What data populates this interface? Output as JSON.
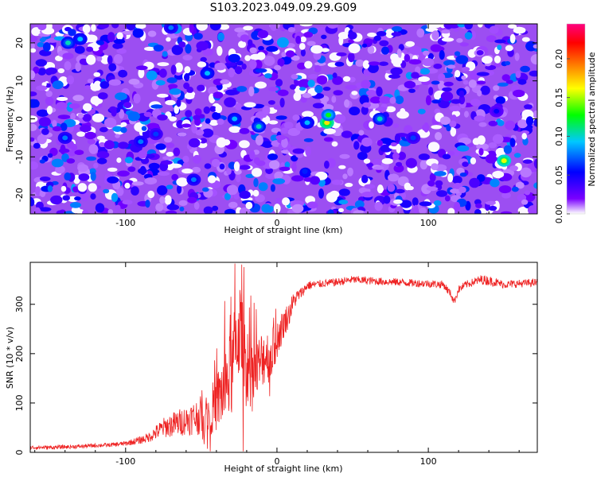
{
  "figure": {
    "title": "S103.2023.049.09.29.G09"
  },
  "chart_data": [
    {
      "type": "heatmap",
      "title": "S103.2023.049.09.29.G09",
      "xlabel": "Height of straight line (km)",
      "ylabel": "Frequency (Hz)",
      "xlim": [
        -163,
        172
      ],
      "ylim": [
        -25,
        25
      ],
      "x_ticks": [
        -100,
        0,
        100
      ],
      "x_tick_labels": [
        "-100",
        "0",
        "100"
      ],
      "y_ticks": [
        -20,
        -10,
        0,
        10,
        20
      ],
      "y_tick_labels": [
        "-20",
        "-10",
        "0",
        "10",
        "20"
      ],
      "colorbar": {
        "label": "Normalized spectral amplitude",
        "range": [
          0,
          0.245
        ],
        "ticks": [
          0,
          0.05,
          0.1,
          0.15,
          0.2
        ],
        "tick_labels": [
          "0.00",
          "0.05",
          "0.10",
          "0.15",
          "0.20"
        ],
        "colormap": [
          "#ffffff",
          "#7a00ff",
          "#0000ff",
          "#00c8ff",
          "#00ff00",
          "#ffff00",
          "#ff8000",
          "#ff0000",
          "#ff0080"
        ]
      },
      "background_level": 0.02,
      "hotspots": [
        {
          "x": 33,
          "y": -1,
          "value": 0.16
        },
        {
          "x": 34,
          "y": 1,
          "value": 0.12
        },
        {
          "x": -12,
          "y": -2,
          "value": 0.1
        },
        {
          "x": -28,
          "y": 0,
          "value": 0.09
        },
        {
          "x": 20,
          "y": -1,
          "value": 0.09
        },
        {
          "x": 68,
          "y": 0,
          "value": 0.1
        },
        {
          "x": 150,
          "y": -11,
          "value": 0.15
        },
        {
          "x": -130,
          "y": 21,
          "value": 0.09
        },
        {
          "x": -46,
          "y": 12,
          "value": 0.09
        },
        {
          "x": -140,
          "y": -5,
          "value": 0.08
        },
        {
          "x": -90,
          "y": -6,
          "value": 0.08
        },
        {
          "x": -80,
          "y": -4,
          "value": 0.07
        },
        {
          "x": -55,
          "y": -16,
          "value": 0.08
        },
        {
          "x": 90,
          "y": -5,
          "value": 0.07
        },
        {
          "x": 145,
          "y": 2,
          "value": 0.06
        },
        {
          "x": -138,
          "y": 20,
          "value": 0.1
        },
        {
          "x": -70,
          "y": 24,
          "value": 0.08
        }
      ]
    },
    {
      "type": "line",
      "xlabel": "Height of straight line (km)",
      "ylabel": "SNR (10 * v/v)",
      "xlim": [
        -163,
        172
      ],
      "ylim": [
        0,
        385
      ],
      "x_ticks": [
        -100,
        0,
        100
      ],
      "x_tick_labels": [
        "-100",
        "0",
        "100"
      ],
      "y_ticks": [
        0,
        100,
        200,
        300
      ],
      "y_tick_labels": [
        "0",
        "100",
        "200",
        "300"
      ],
      "color": "#ee2222",
      "series": [
        {
          "x": [
            -163,
            -150,
            -140,
            -130,
            -120,
            -110,
            -100,
            -90,
            -85,
            -80,
            -75,
            -70,
            -65,
            -60,
            -55,
            -50,
            -45,
            -40,
            -35,
            -30,
            -27,
            -25,
            -23,
            -20,
            -18,
            -15,
            -12,
            -10,
            -7,
            -5,
            -2,
            0,
            3,
            5,
            8,
            10,
            13,
            15,
            18,
            20,
            25,
            30,
            40,
            50,
            60,
            70,
            80,
            90,
            100,
            110,
            115,
            117,
            120,
            125,
            130,
            135,
            140,
            150,
            160,
            172
          ],
          "y": [
            10,
            10,
            11,
            12,
            14,
            15,
            18,
            25,
            30,
            40,
            50,
            55,
            60,
            65,
            70,
            75,
            80,
            100,
            130,
            160,
            220,
            260,
            210,
            180,
            150,
            160,
            170,
            190,
            200,
            190,
            210,
            230,
            250,
            265,
            280,
            300,
            315,
            320,
            330,
            338,
            340,
            342,
            345,
            350,
            348,
            346,
            345,
            343,
            342,
            340,
            320,
            305,
            330,
            340,
            345,
            350,
            348,
            340,
            342,
            344
          ],
          "noise": [
            4,
            4,
            4,
            4,
            4,
            4,
            5,
            8,
            10,
            15,
            20,
            25,
            28,
            30,
            35,
            40,
            45,
            60,
            80,
            90,
            100,
            110,
            100,
            90,
            80,
            70,
            70,
            60,
            60,
            50,
            50,
            40,
            35,
            30,
            25,
            20,
            15,
            12,
            10,
            10,
            8,
            8,
            8,
            8,
            8,
            8,
            8,
            8,
            8,
            8,
            8,
            8,
            8,
            8,
            8,
            10,
            10,
            8,
            8,
            8
          ]
        }
      ]
    }
  ]
}
